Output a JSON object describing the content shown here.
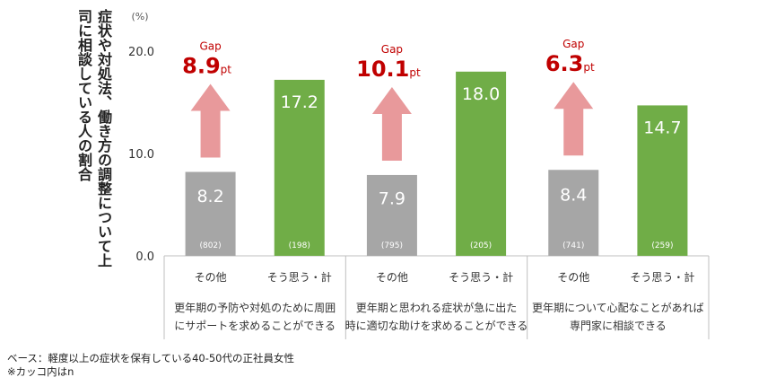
{
  "y_title": "症状や対処法、働き方の調整について上司に相談している人の割合",
  "unit": "(%)",
  "footnote_base": "ベース：軽度以上の症状を保有している40-50代の正社員女性",
  "footnote_n": "※カッコ内はn",
  "colors": {
    "other": "#a6a6a6",
    "agree": "#70ad47",
    "gap_value": "#c00000",
    "arrow": "#e8999b",
    "axis": "#bfbfbf"
  },
  "chart_data": {
    "type": "bar",
    "ylim": [
      0,
      20
    ],
    "yticks": [
      "0.0",
      "10.0",
      "20.0"
    ],
    "series_labels": [
      "その他",
      "そう思う・計"
    ],
    "gap_label": "Gap",
    "gap_unit": "pt",
    "groups": [
      {
        "category_lines": [
          "更年期の予防や対処のために周囲",
          "にサポートを求めることができる"
        ],
        "values": [
          8.2,
          17.2
        ],
        "value_labels": [
          "8.2",
          "17.2"
        ],
        "n": [
          "(802)",
          "(198)"
        ],
        "gap": "8.9"
      },
      {
        "category_lines": [
          "更年期と思われる症状が急に出た",
          "時に適切な助けを求めることができる"
        ],
        "values": [
          7.9,
          18.0
        ],
        "value_labels": [
          "7.9",
          "18.0"
        ],
        "n": [
          "(795)",
          "(205)"
        ],
        "gap": "10.1"
      },
      {
        "category_lines": [
          "更年期について心配なことがあれば",
          "専門家に相談できる"
        ],
        "values": [
          8.4,
          14.7
        ],
        "value_labels": [
          "8.4",
          "14.7"
        ],
        "n": [
          "(741)",
          "(259)"
        ],
        "gap": "6.3"
      }
    ]
  }
}
